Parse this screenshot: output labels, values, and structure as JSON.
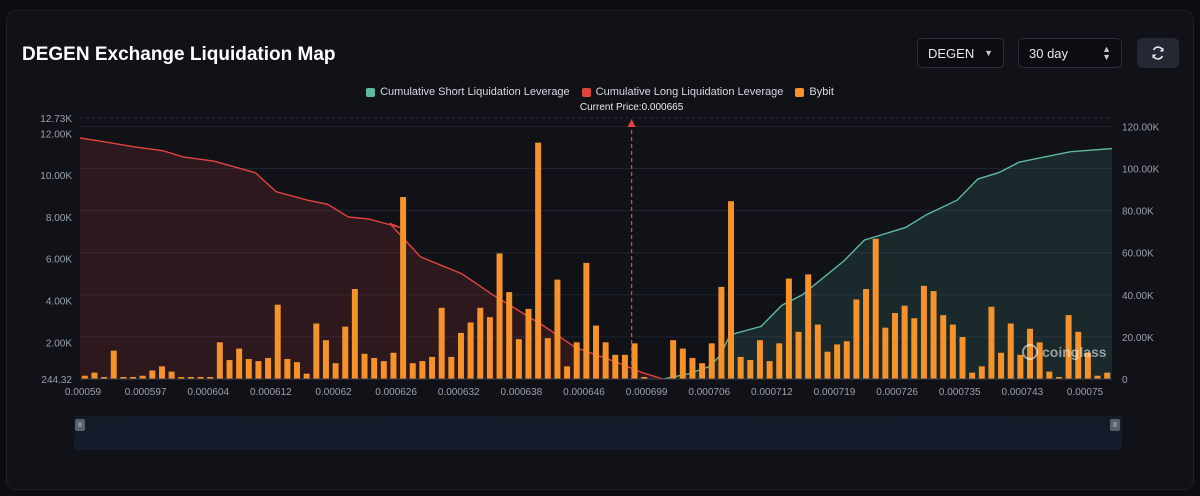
{
  "header": {
    "title": "DEGEN Exchange Liquidation Map",
    "symbol_select": "DEGEN",
    "range_select": "30 day",
    "refresh_icon": "refresh-icon"
  },
  "watermark": "coinglass",
  "colors": {
    "short": "#5fb8a0",
    "long": "#e0443e",
    "bybit": "#f5922a",
    "price_marker": "#e0443e"
  },
  "chart_data": {
    "type": "bar",
    "legend": [
      {
        "name": "Cumulative Short Liquidation Leverage",
        "color": "#5fb8a0"
      },
      {
        "name": "Cumulative Long Liquidation Leverage",
        "color": "#e0443e"
      },
      {
        "name": "Bybit",
        "color": "#f5922a"
      }
    ],
    "current_price_label": "Current Price:0.000665",
    "x_tick_labels": [
      "0.00059",
      "0.000597",
      "0.000604",
      "0.000612",
      "0.00062",
      "0.000626",
      "0.000632",
      "0.000638",
      "0.000646",
      "0.000699",
      "0.000706",
      "0.000712",
      "0.000719",
      "0.000726",
      "0.000735",
      "0.000743",
      "0.00075"
    ],
    "y_left_ticks": [
      "244.32",
      "2.00K",
      "4.00K",
      "6.00K",
      "8.00K",
      "10.00K",
      "12.00K",
      "12.73K"
    ],
    "y_left_values": [
      244.32,
      2000,
      4000,
      6000,
      8000,
      10000,
      12000,
      12730
    ],
    "y_right_ticks": [
      "0",
      "20.00K",
      "40.00K",
      "60.00K",
      "80.00K",
      "100.00K",
      "120.00K"
    ],
    "y_right_values": [
      0,
      20000,
      40000,
      60000,
      80000,
      100000,
      120000
    ],
    "bybit_values": [
      400,
      550,
      200,
      1600,
      300,
      250,
      400,
      650,
      850,
      600,
      300,
      200,
      100,
      150,
      2000,
      1150,
      1700,
      1200,
      1100,
      1250,
      3800,
      1200,
      1050,
      500,
      2900,
      2100,
      1000,
      2750,
      4550,
      1450,
      1250,
      1100,
      1500,
      8950,
      1000,
      1100,
      1300,
      3650,
      1300,
      2450,
      2950,
      3650,
      3200,
      6250,
      4400,
      2150,
      3600,
      11550,
      2200,
      5000,
      850,
      2000,
      5800,
      2800,
      2000,
      1400,
      1400,
      1950,
      150,
      0,
      0,
      2100,
      1700,
      1250,
      1000,
      1950,
      4650,
      8750,
      1300,
      1150,
      2100,
      1100,
      1950,
      5050,
      2500,
      5250,
      2850,
      1550,
      1900,
      2050,
      4050,
      4550,
      6950,
      2700,
      3400,
      3750,
      3150,
      4700,
      4450,
      3300,
      2850,
      2250,
      550,
      850,
      3700,
      1500,
      2900,
      1400,
      2650,
      2000,
      600,
      150,
      3300,
      2500,
      1500,
      400,
      550
    ],
    "long_cumulative_right_axis": [
      [
        0,
        114500
      ],
      [
        0.02,
        113000
      ],
      [
        0.05,
        110500
      ],
      [
        0.08,
        108500
      ],
      [
        0.1,
        105500
      ],
      [
        0.13,
        103500
      ],
      [
        0.17,
        98000
      ],
      [
        0.19,
        89000
      ],
      [
        0.22,
        85000
      ],
      [
        0.24,
        83000
      ],
      [
        0.26,
        77000
      ],
      [
        0.28,
        76000
      ],
      [
        0.31,
        72000
      ],
      [
        0.3,
        74000
      ],
      [
        0.33,
        58000
      ],
      [
        0.37,
        50000
      ],
      [
        0.4,
        40000
      ],
      [
        0.43,
        31000
      ],
      [
        0.45,
        25000
      ],
      [
        0.48,
        15000
      ],
      [
        0.52,
        8000
      ],
      [
        0.545,
        3000
      ],
      [
        0.565,
        0
      ]
    ],
    "short_cumulative_right_axis": [
      [
        0.565,
        0
      ],
      [
        0.59,
        2500
      ],
      [
        0.61,
        6000
      ],
      [
        0.62,
        11000
      ],
      [
        0.63,
        21000
      ],
      [
        0.66,
        25000
      ],
      [
        0.68,
        35000
      ],
      [
        0.7,
        40000
      ],
      [
        0.72,
        48000
      ],
      [
        0.74,
        56000
      ],
      [
        0.76,
        66000
      ],
      [
        0.78,
        69000
      ],
      [
        0.8,
        72000
      ],
      [
        0.82,
        78000
      ],
      [
        0.85,
        85000
      ],
      [
        0.87,
        95000
      ],
      [
        0.89,
        98000
      ],
      [
        0.91,
        103000
      ],
      [
        0.93,
        105000
      ],
      [
        0.96,
        108000
      ],
      [
        1.0,
        109500
      ]
    ]
  }
}
